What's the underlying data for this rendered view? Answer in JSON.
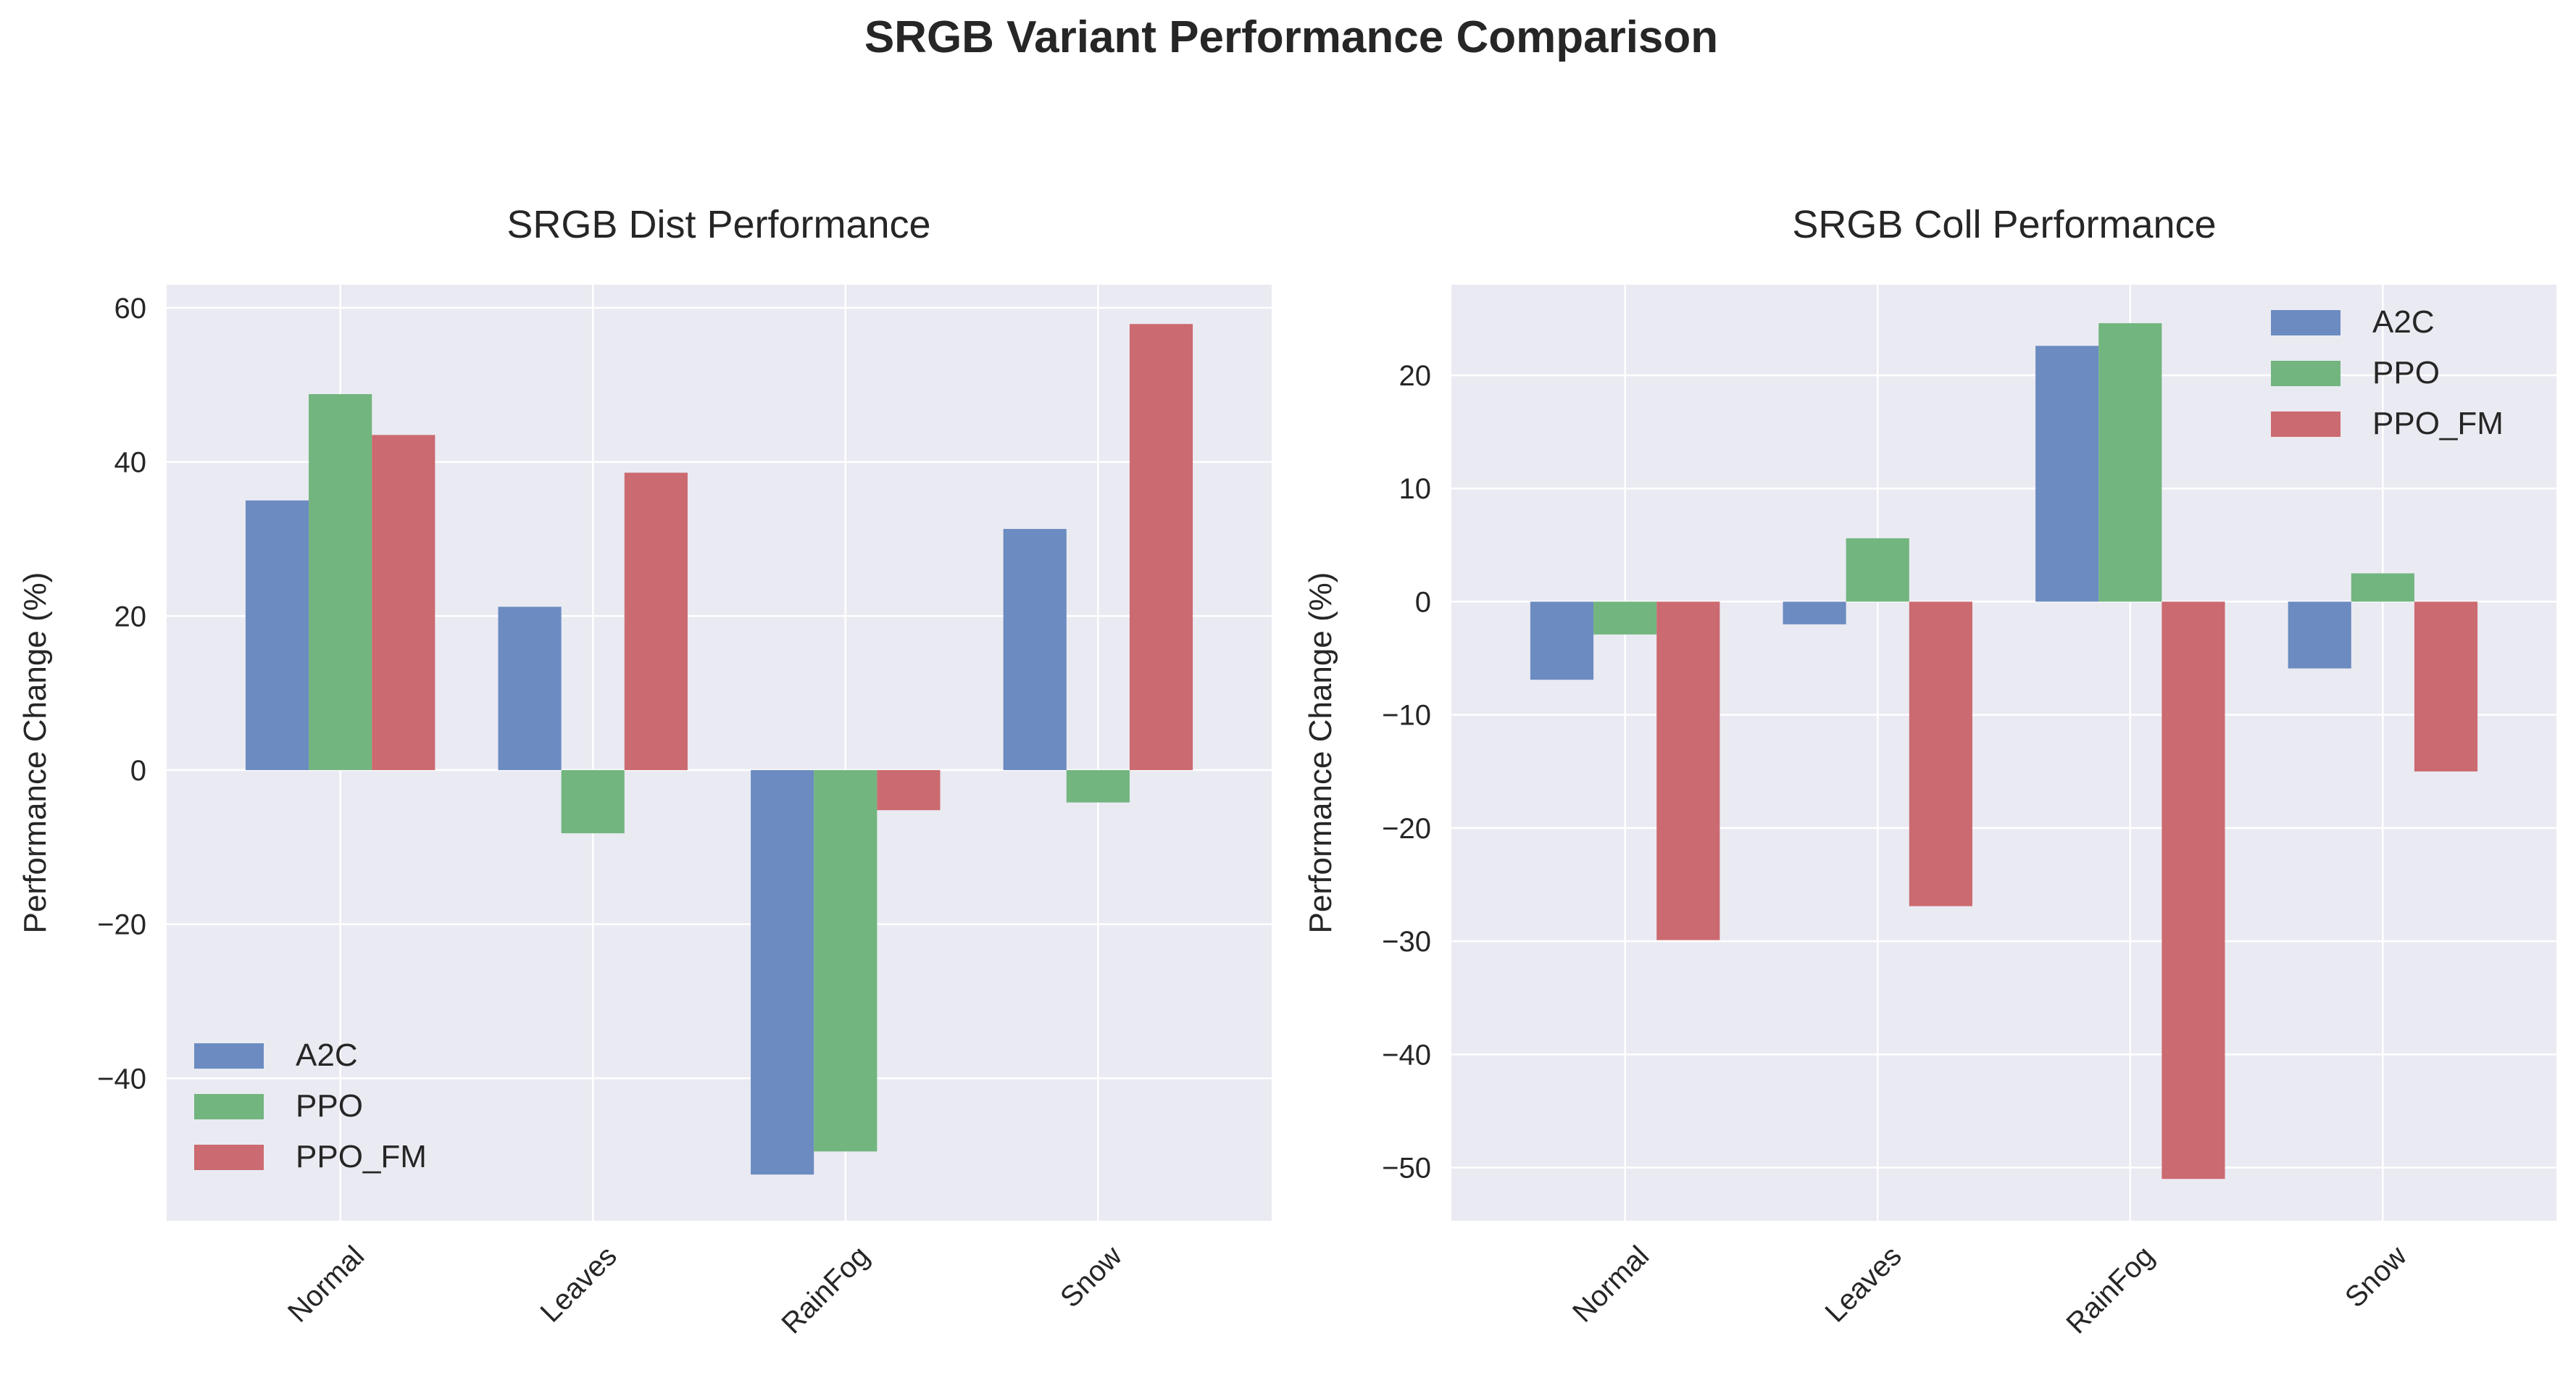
{
  "figure": {
    "title": "SRGB Variant Performance Comparison"
  },
  "colors": {
    "A2C": "#6b8bc1",
    "PPO": "#72b57f",
    "PPO_FM": "#cb6a70",
    "axes_bg": "#eaeaf2",
    "grid": "#ffffff"
  },
  "chart_data": [
    {
      "type": "bar",
      "title": "SRGB Dist Performance",
      "xlabel": "",
      "ylabel": "Performance Change (%)",
      "categories": [
        "Normal",
        "Leaves",
        "RainFog",
        "Snow"
      ],
      "series": [
        {
          "name": "A2C",
          "values": [
            35.0,
            21.2,
            -52.5,
            31.3
          ]
        },
        {
          "name": "PPO",
          "values": [
            48.8,
            -8.2,
            -49.5,
            -4.2
          ]
        },
        {
          "name": "PPO_FM",
          "values": [
            43.5,
            38.6,
            -5.2,
            57.9
          ]
        }
      ],
      "ylim": [
        -58.5,
        63.0
      ],
      "yticks": [
        -40,
        -20,
        0,
        20,
        40,
        60
      ],
      "ytick_labels": [
        "−40",
        "−20",
        "0",
        "20",
        "40",
        "60"
      ],
      "grid": true,
      "legend": {
        "entries": [
          "A2C",
          "PPO",
          "PPO_FM"
        ],
        "location": "lower-left"
      }
    },
    {
      "type": "bar",
      "title": "SRGB Coll Performance",
      "xlabel": "",
      "ylabel": "Performance Change (%)",
      "categories": [
        "Normal",
        "Leaves",
        "RainFog",
        "Snow"
      ],
      "series": [
        {
          "name": "A2C",
          "values": [
            -6.9,
            -2.0,
            22.6,
            -5.9
          ]
        },
        {
          "name": "PPO",
          "values": [
            -2.9,
            5.6,
            24.6,
            2.5
          ]
        },
        {
          "name": "PPO_FM",
          "values": [
            -29.9,
            -26.9,
            -51.0,
            -15.0
          ]
        }
      ],
      "ylim": [
        -54.7,
        28.0
      ],
      "yticks": [
        -50,
        -40,
        -30,
        -20,
        -10,
        0,
        10,
        20
      ],
      "ytick_labels": [
        "−50",
        "−40",
        "−30",
        "−20",
        "−10",
        "0",
        "10",
        "20"
      ],
      "grid": true,
      "legend": {
        "entries": [
          "A2C",
          "PPO",
          "PPO_FM"
        ],
        "location": "upper-right"
      }
    }
  ]
}
